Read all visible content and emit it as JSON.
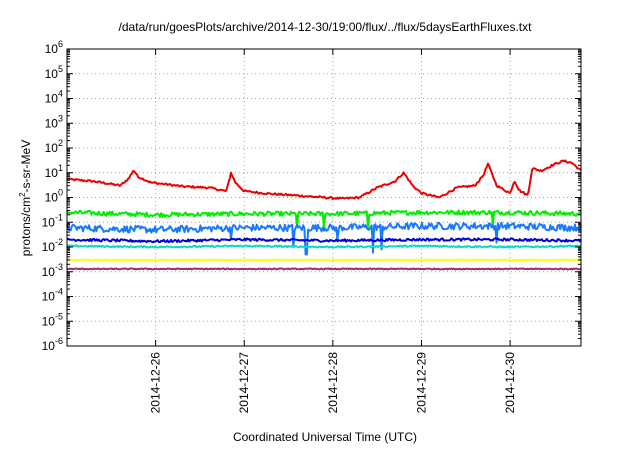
{
  "chart_data": {
    "type": "line",
    "title": "/data/run/goesPlots/archive/2014-12-30/19:00/flux/../flux/5daysEarthFluxes.txt",
    "xlabel": "Coordinated Universal Time (UTC)",
    "ylabel": {
      "prefix": "protons/cm",
      "sup": "2",
      "suffix": "-s-sr-MeV"
    },
    "yscale": "log",
    "ylim": [
      1e-06,
      1000000.0
    ],
    "ytick_exponents": [
      -6,
      -5,
      -4,
      -3,
      -2,
      -1,
      0,
      1,
      2,
      3,
      4,
      5,
      6
    ],
    "ytick_base": "10",
    "xlim_days": [
      0.0,
      5.8
    ],
    "xticks": [
      {
        "day": 1,
        "label": "2014-12-26"
      },
      {
        "day": 2,
        "label": "2014-12-27"
      },
      {
        "day": 3,
        "label": "2014-12-28"
      },
      {
        "day": 4,
        "label": "2014-12-29"
      },
      {
        "day": 5,
        "label": "2014-12-30"
      }
    ],
    "grid": true,
    "legend": "none",
    "series": [
      {
        "color": "#ee0000",
        "noise": 0.04,
        "dips": [],
        "points": [
          [
            0.0,
            5.5
          ],
          [
            0.3,
            4.5
          ],
          [
            0.5,
            3.5
          ],
          [
            0.6,
            3.0
          ],
          [
            0.7,
            6.0
          ],
          [
            0.75,
            13
          ],
          [
            0.8,
            7.0
          ],
          [
            0.95,
            4.0
          ],
          [
            1.1,
            3.5
          ],
          [
            1.3,
            2.8
          ],
          [
            1.6,
            2.5
          ],
          [
            1.8,
            1.8
          ],
          [
            1.85,
            10
          ],
          [
            1.9,
            4.0
          ],
          [
            2.0,
            1.8
          ],
          [
            2.3,
            1.4
          ],
          [
            2.6,
            1.2
          ],
          [
            2.9,
            1.0
          ],
          [
            3.1,
            0.9
          ],
          [
            3.3,
            1.0
          ],
          [
            3.5,
            2.5
          ],
          [
            3.7,
            4.5
          ],
          [
            3.8,
            10
          ],
          [
            3.9,
            3.0
          ],
          [
            4.0,
            1.5
          ],
          [
            4.2,
            1.0
          ],
          [
            4.4,
            2.5
          ],
          [
            4.6,
            3.0
          ],
          [
            4.7,
            8.0
          ],
          [
            4.75,
            23
          ],
          [
            4.85,
            3.0
          ],
          [
            5.0,
            1.5
          ],
          [
            5.05,
            5.0
          ],
          [
            5.1,
            2.0
          ],
          [
            5.2,
            1.2
          ],
          [
            5.25,
            15
          ],
          [
            5.35,
            12
          ],
          [
            5.5,
            22
          ],
          [
            5.6,
            30
          ],
          [
            5.7,
            25
          ],
          [
            5.8,
            12
          ]
        ]
      },
      {
        "color": "#00ee00",
        "noise": 0.09,
        "dips": [
          [
            2.6,
            0.06
          ],
          [
            2.9,
            0.05
          ],
          [
            3.4,
            0.05
          ],
          [
            4.8,
            0.08
          ]
        ],
        "points": [
          [
            0.0,
            0.25
          ],
          [
            1.0,
            0.2
          ],
          [
            2.0,
            0.22
          ],
          [
            3.0,
            0.22
          ],
          [
            4.0,
            0.25
          ],
          [
            5.0,
            0.25
          ],
          [
            5.8,
            0.22
          ]
        ]
      },
      {
        "color": "#1a7aff",
        "noise": 0.14,
        "dips": [
          [
            1.85,
            0.02
          ],
          [
            2.55,
            0.01
          ],
          [
            2.7,
            0.005
          ],
          [
            3.05,
            0.02
          ],
          [
            3.45,
            0.006
          ],
          [
            3.55,
            0.008
          ],
          [
            4.85,
            0.015
          ]
        ],
        "points": [
          [
            0.0,
            0.06
          ],
          [
            1.0,
            0.05
          ],
          [
            2.0,
            0.06
          ],
          [
            3.0,
            0.06
          ],
          [
            4.0,
            0.07
          ],
          [
            5.0,
            0.07
          ],
          [
            5.8,
            0.06
          ]
        ]
      },
      {
        "color": "#0000dd",
        "noise": 0.05,
        "dips": [],
        "points": [
          [
            0.0,
            0.02
          ],
          [
            1.0,
            0.017
          ],
          [
            2.0,
            0.02
          ],
          [
            3.0,
            0.018
          ],
          [
            4.0,
            0.02
          ],
          [
            5.0,
            0.02
          ],
          [
            5.8,
            0.018
          ]
        ]
      },
      {
        "color": "#00e0c0",
        "noise": 0.03,
        "dips": [],
        "points": [
          [
            0.0,
            0.011
          ],
          [
            1.0,
            0.01
          ],
          [
            2.0,
            0.011
          ],
          [
            3.0,
            0.01
          ],
          [
            4.0,
            0.011
          ],
          [
            5.0,
            0.01
          ],
          [
            5.8,
            0.011
          ]
        ]
      },
      {
        "color": "#ffff00",
        "noise": 0.015,
        "dips": [],
        "points": [
          [
            0.0,
            0.003
          ],
          [
            1.0,
            0.003
          ],
          [
            2.0,
            0.003
          ],
          [
            3.0,
            0.003
          ],
          [
            4.0,
            0.003
          ],
          [
            5.0,
            0.003
          ],
          [
            5.8,
            0.003
          ]
        ]
      },
      {
        "color": "#993366",
        "noise": 0.02,
        "dips": [],
        "points": [
          [
            0.0,
            0.0013
          ],
          [
            1.0,
            0.0013
          ],
          [
            2.0,
            0.0013
          ],
          [
            3.0,
            0.0013
          ],
          [
            4.0,
            0.0013
          ],
          [
            5.0,
            0.0013
          ],
          [
            5.8,
            0.0013
          ]
        ]
      }
    ]
  }
}
